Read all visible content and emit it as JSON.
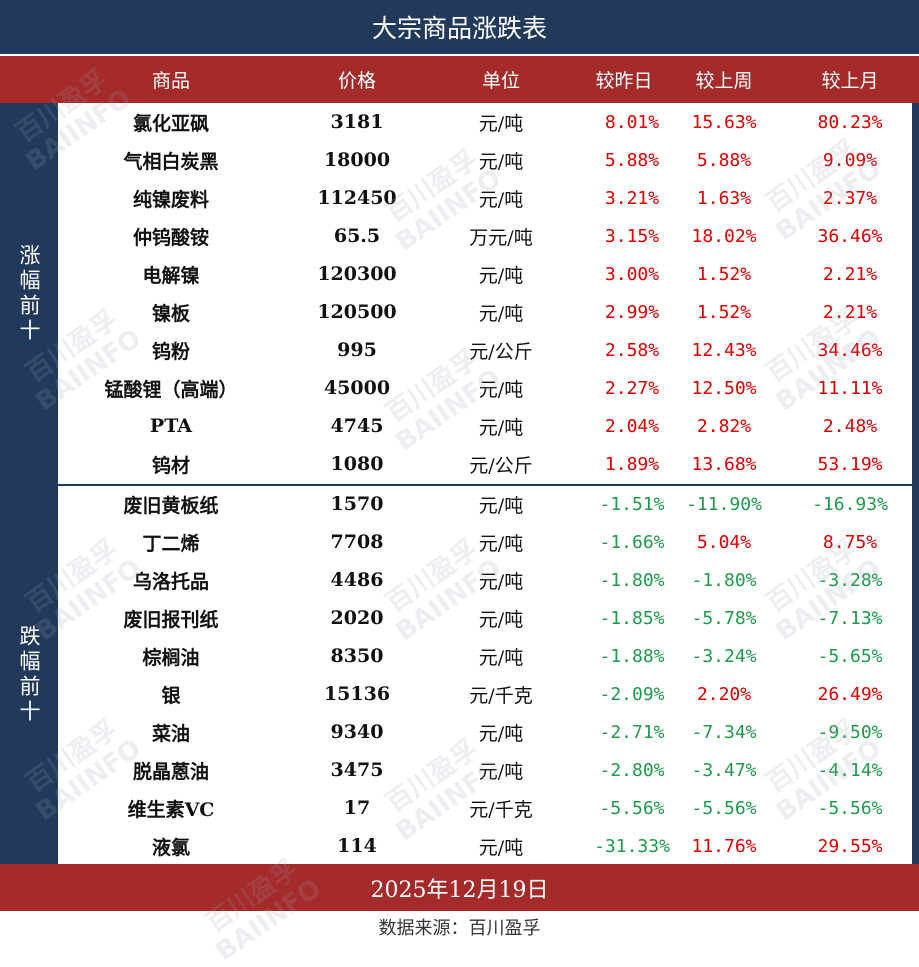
{
  "title": "大宗商品涨跌表",
  "header": {
    "name": "商品",
    "price": "价格",
    "unit": "单位",
    "day": "较昨日",
    "week": "较上周",
    "month": "较上月"
  },
  "sections": {
    "up_label": "涨幅前十",
    "down_label": "跌幅前十"
  },
  "rows": [
    {
      "name": "氯化亚砜",
      "price": "3181",
      "unit": "元/吨",
      "day": "8.01%",
      "week": "15.63%",
      "month": "80.23%",
      "day_dir": "up",
      "week_dir": "up",
      "month_dir": "up"
    },
    {
      "name": "气相白炭黑",
      "price": "18000",
      "unit": "元/吨",
      "day": "5.88%",
      "week": "5.88%",
      "month": "9.09%",
      "day_dir": "up",
      "week_dir": "up",
      "month_dir": "up"
    },
    {
      "name": "纯镍废料",
      "price": "112450",
      "unit": "元/吨",
      "day": "3.21%",
      "week": "1.63%",
      "month": "2.37%",
      "day_dir": "up",
      "week_dir": "up",
      "month_dir": "up"
    },
    {
      "name": "仲钨酸铵",
      "price": "65.5",
      "unit": "万元/吨",
      "day": "3.15%",
      "week": "18.02%",
      "month": "36.46%",
      "day_dir": "up",
      "week_dir": "up",
      "month_dir": "up"
    },
    {
      "name": "电解镍",
      "price": "120300",
      "unit": "元/吨",
      "day": "3.00%",
      "week": "1.52%",
      "month": "2.21%",
      "day_dir": "up",
      "week_dir": "up",
      "month_dir": "up"
    },
    {
      "name": "镍板",
      "price": "120500",
      "unit": "元/吨",
      "day": "2.99%",
      "week": "1.52%",
      "month": "2.21%",
      "day_dir": "up",
      "week_dir": "up",
      "month_dir": "up"
    },
    {
      "name": "钨粉",
      "price": "995",
      "unit": "元/公斤",
      "day": "2.58%",
      "week": "12.43%",
      "month": "34.46%",
      "day_dir": "up",
      "week_dir": "up",
      "month_dir": "up"
    },
    {
      "name": "锰酸锂（高端）",
      "price": "45000",
      "unit": "元/吨",
      "day": "2.27%",
      "week": "12.50%",
      "month": "11.11%",
      "day_dir": "up",
      "week_dir": "up",
      "month_dir": "up"
    },
    {
      "name": "PTA",
      "price": "4745",
      "unit": "元/吨",
      "day": "2.04%",
      "week": "2.82%",
      "month": "2.48%",
      "day_dir": "up",
      "week_dir": "up",
      "month_dir": "up"
    },
    {
      "name": "钨材",
      "price": "1080",
      "unit": "元/公斤",
      "day": "1.89%",
      "week": "13.68%",
      "month": "53.19%",
      "day_dir": "up",
      "week_dir": "up",
      "month_dir": "up"
    },
    {
      "name": "废旧黄板纸",
      "price": "1570",
      "unit": "元/吨",
      "day": "-1.51%",
      "week": "-11.90%",
      "month": "-16.93%",
      "day_dir": "down",
      "week_dir": "down",
      "month_dir": "down"
    },
    {
      "name": "丁二烯",
      "price": "7708",
      "unit": "元/吨",
      "day": "-1.66%",
      "week": "5.04%",
      "month": "8.75%",
      "day_dir": "down",
      "week_dir": "up",
      "month_dir": "up"
    },
    {
      "name": "乌洛托品",
      "price": "4486",
      "unit": "元/吨",
      "day": "-1.80%",
      "week": "-1.80%",
      "month": "-3.28%",
      "day_dir": "down",
      "week_dir": "down",
      "month_dir": "down"
    },
    {
      "name": "废旧报刊纸",
      "price": "2020",
      "unit": "元/吨",
      "day": "-1.85%",
      "week": "-5.78%",
      "month": "-7.13%",
      "day_dir": "down",
      "week_dir": "down",
      "month_dir": "down"
    },
    {
      "name": "棕榈油",
      "price": "8350",
      "unit": "元/吨",
      "day": "-1.88%",
      "week": "-3.24%",
      "month": "-5.65%",
      "day_dir": "down",
      "week_dir": "down",
      "month_dir": "down"
    },
    {
      "name": "银",
      "price": "15136",
      "unit": "元/千克",
      "day": "-2.09%",
      "week": "2.20%",
      "month": "26.49%",
      "day_dir": "down",
      "week_dir": "up",
      "month_dir": "up"
    },
    {
      "name": "菜油",
      "price": "9340",
      "unit": "元/吨",
      "day": "-2.71%",
      "week": "-7.34%",
      "month": "-9.50%",
      "day_dir": "down",
      "week_dir": "down",
      "month_dir": "down"
    },
    {
      "name": "脱晶蒽油",
      "price": "3475",
      "unit": "元/吨",
      "day": "-2.80%",
      "week": "-3.47%",
      "month": "-4.14%",
      "day_dir": "down",
      "week_dir": "down",
      "month_dir": "down"
    },
    {
      "name": "维生素VC",
      "price": "17",
      "unit": "元/千克",
      "day": "-5.56%",
      "week": "-5.56%",
      "month": "-5.56%",
      "day_dir": "down",
      "week_dir": "down",
      "month_dir": "down"
    },
    {
      "name": "液氯",
      "price": "114",
      "unit": "元/吨",
      "day": "-31.33%",
      "week": "11.76%",
      "month": "29.55%",
      "day_dir": "down",
      "week_dir": "up",
      "month_dir": "up"
    }
  ],
  "footer": {
    "date": "2025年12月19日",
    "source": "数据来源：百川盈孚"
  },
  "watermark": {
    "text_cn": "百川盈孚",
    "text_en": "BAIINFO"
  },
  "colors": {
    "navy": "#213a5c",
    "red_band": "#a52a2a",
    "up": "#e00000",
    "down": "#1e9b4c"
  }
}
